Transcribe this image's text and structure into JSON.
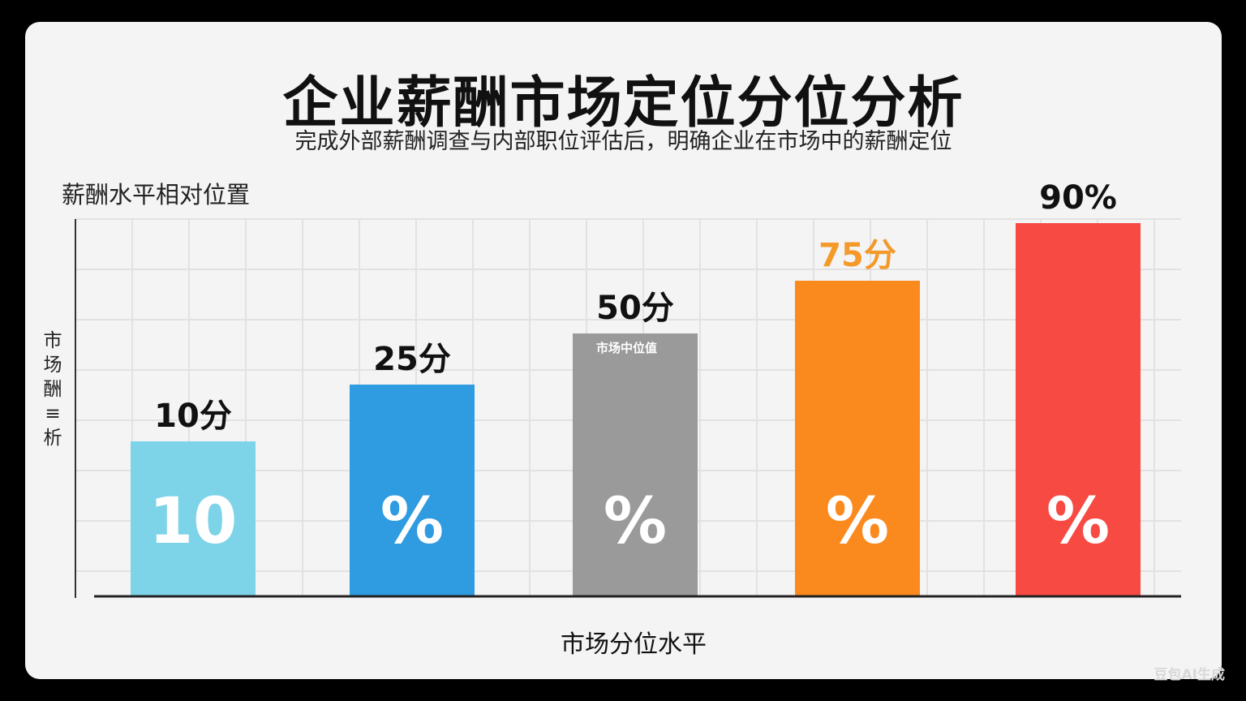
{
  "chart_data": {
    "type": "bar",
    "title": "企业薪酬市场定位分位分析",
    "subtitle": "完成外部薪酬调查与内部职位评估后，明确企业在市场中的薪酬定位",
    "ytitle": "薪酬水平相对位置",
    "ylabel_side": "市场酬≡析",
    "xlabel": "市场分位水平",
    "categories": [
      "",
      "",
      "",
      "",
      ""
    ],
    "values": [
      10,
      25,
      50,
      75,
      90
    ],
    "top_labels": [
      "10分",
      "25分",
      "50分",
      "75分",
      "90%"
    ],
    "top_label_colors": [
      "#111111",
      "#111111",
      "#111111",
      "#f39a2a",
      "#111111"
    ],
    "inner_labels": [
      "10",
      "%",
      "%",
      "%",
      "%"
    ],
    "bar_colors": [
      "#7dd4e8",
      "#2f9be0",
      "#9a9a9a",
      "#fb8a1e",
      "#f74a43"
    ],
    "bar_annotation": {
      "index": 2,
      "text": "市场中位值"
    },
    "ylim": [
      0,
      100
    ],
    "grid": true,
    "legend": "none"
  },
  "watermark": "豆包AI生成"
}
